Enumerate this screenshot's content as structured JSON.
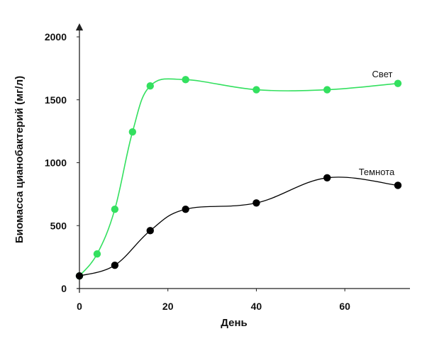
{
  "chart_data": {
    "type": "line",
    "title": "",
    "xlabel": "День",
    "ylabel": "Биомасса цианобактерий (мг/л)",
    "xlim": [
      0,
      72
    ],
    "ylim": [
      0,
      2000
    ],
    "x_ticks": [
      0,
      20,
      40,
      60
    ],
    "y_ticks": [
      0,
      500,
      1000,
      1500,
      2000
    ],
    "grid": false,
    "legend": "inline",
    "series": [
      {
        "name": "Свет",
        "color": "#33e05f",
        "x": [
          0,
          4,
          8,
          12,
          16,
          24,
          40,
          56,
          72
        ],
        "y": [
          100,
          275,
          630,
          1245,
          1610,
          1660,
          1580,
          1580,
          1630
        ]
      },
      {
        "name": "Темнота",
        "color": "#000000",
        "x": [
          0,
          8,
          16,
          24,
          40,
          56,
          72
        ],
        "y": [
          100,
          185,
          460,
          630,
          680,
          880,
          820
        ]
      }
    ]
  }
}
